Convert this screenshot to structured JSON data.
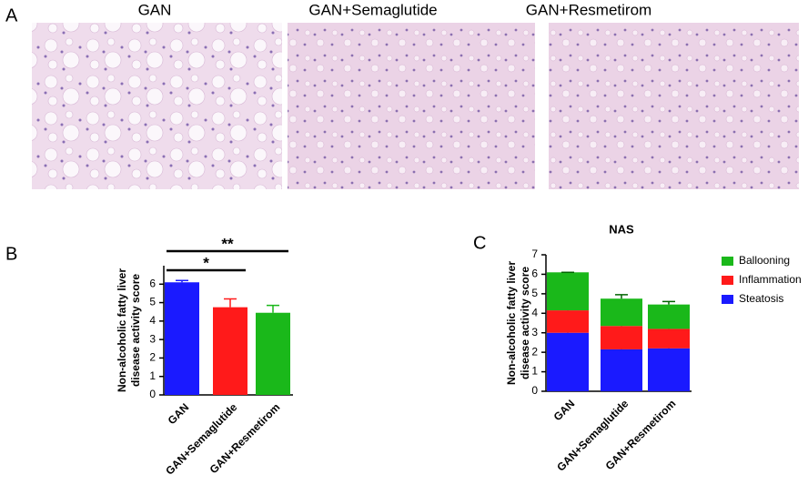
{
  "panel_labels": [
    "A",
    "B",
    "C"
  ],
  "image_titles": [
    "GAN",
    "GAN+Semaglutide",
    "GAN+Resmetirom"
  ],
  "chart_data": [
    {
      "type": "bar",
      "ylabel": [
        "Non-alcoholic fatty liver",
        "disease activity score"
      ],
      "categories": [
        "GAN",
        "GAN+Semaglutide",
        "GAN+Resmetirom"
      ],
      "values": [
        6.1,
        4.75,
        4.45
      ],
      "errors": [
        0.1,
        0.45,
        0.4
      ],
      "colors": [
        "#1a1aff",
        "#ff1a1a",
        "#1ab81a"
      ],
      "ylim": [
        0,
        7
      ],
      "yticks": [
        0,
        1,
        2,
        3,
        4,
        5,
        6
      ],
      "annotations": [
        {
          "text": "*",
          "between": [
            "GAN",
            "GAN+Semaglutide"
          ]
        },
        {
          "text": "**",
          "between": [
            "GAN",
            "GAN+Resmetirom"
          ]
        }
      ]
    },
    {
      "type": "stacked_bar",
      "title": "NAS",
      "ylabel": [
        "Non-alcoholic fatty liver",
        "disease activity score"
      ],
      "categories": [
        "GAN",
        "GAN+Semaglutide",
        "GAN+Resmetirom"
      ],
      "series": [
        {
          "name": "Steatosis",
          "color": "#1a1aff",
          "values": [
            3.0,
            2.15,
            2.2
          ],
          "errors": [
            0.05,
            0.15,
            0.15
          ]
        },
        {
          "name": "Inflammation",
          "color": "#ff1a1a",
          "values": [
            1.15,
            1.2,
            1.0
          ],
          "errors": [
            0.1,
            0.2,
            0.3
          ]
        },
        {
          "name": "Ballooning",
          "color": "#1ab81a",
          "values": [
            1.95,
            1.4,
            1.25
          ],
          "errors": [
            0,
            0.2,
            0.15
          ]
        }
      ],
      "ylim": [
        0,
        7
      ],
      "yticks": [
        0,
        1,
        2,
        3,
        4,
        5,
        6,
        7
      ],
      "legend": "right"
    }
  ]
}
